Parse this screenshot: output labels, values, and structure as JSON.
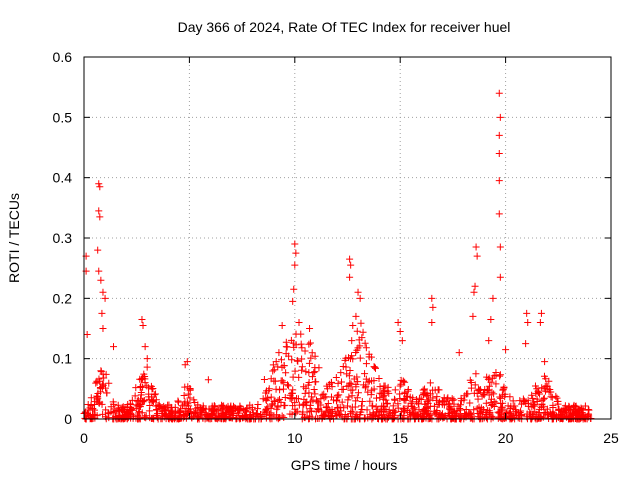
{
  "chart_data": {
    "type": "scatter",
    "title": "Day 366 of 2024, Rate Of TEC Index for receiver huel",
    "xlabel": "GPS time / hours",
    "ylabel": "ROTI / TECUs",
    "xlim": [
      0,
      25
    ],
    "ylim": [
      0,
      0.6
    ],
    "xticks": [
      "0",
      "5",
      "10",
      "15",
      "20",
      "25"
    ],
    "yticks": [
      "0",
      "0.1",
      "0.2",
      "0.3",
      "0.4",
      "0.5",
      "0.6"
    ],
    "grid": true,
    "marker": "+",
    "series": [
      {
        "name": "ROTI",
        "color": "#ff0000",
        "notable_points": [
          {
            "x": 0.1,
            "y": 0.27
          },
          {
            "x": 0.1,
            "y": 0.245
          },
          {
            "x": 0.15,
            "y": 0.14
          },
          {
            "x": 0.7,
            "y": 0.39
          },
          {
            "x": 0.75,
            "y": 0.385
          },
          {
            "x": 0.7,
            "y": 0.345
          },
          {
            "x": 0.75,
            "y": 0.335
          },
          {
            "x": 0.65,
            "y": 0.28
          },
          {
            "x": 0.7,
            "y": 0.245
          },
          {
            "x": 0.8,
            "y": 0.23
          },
          {
            "x": 0.9,
            "y": 0.21
          },
          {
            "x": 1.0,
            "y": 0.2
          },
          {
            "x": 0.85,
            "y": 0.175
          },
          {
            "x": 0.9,
            "y": 0.15
          },
          {
            "x": 1.4,
            "y": 0.12
          },
          {
            "x": 2.75,
            "y": 0.165
          },
          {
            "x": 2.8,
            "y": 0.155
          },
          {
            "x": 2.9,
            "y": 0.12
          },
          {
            "x": 3.0,
            "y": 0.1
          },
          {
            "x": 4.8,
            "y": 0.09
          },
          {
            "x": 4.9,
            "y": 0.095
          },
          {
            "x": 5.9,
            "y": 0.065
          },
          {
            "x": 9.4,
            "y": 0.155
          },
          {
            "x": 9.6,
            "y": 0.12
          },
          {
            "x": 10.0,
            "y": 0.29
          },
          {
            "x": 10.05,
            "y": 0.275
          },
          {
            "x": 10.0,
            "y": 0.255
          },
          {
            "x": 9.95,
            "y": 0.215
          },
          {
            "x": 9.9,
            "y": 0.195
          },
          {
            "x": 10.2,
            "y": 0.16
          },
          {
            "x": 10.7,
            "y": 0.15
          },
          {
            "x": 12.6,
            "y": 0.265
          },
          {
            "x": 12.65,
            "y": 0.255
          },
          {
            "x": 12.6,
            "y": 0.235
          },
          {
            "x": 13.0,
            "y": 0.21
          },
          {
            "x": 13.1,
            "y": 0.2
          },
          {
            "x": 12.9,
            "y": 0.17
          },
          {
            "x": 12.75,
            "y": 0.155
          },
          {
            "x": 12.7,
            "y": 0.13
          },
          {
            "x": 14.9,
            "y": 0.16
          },
          {
            "x": 15.0,
            "y": 0.145
          },
          {
            "x": 15.1,
            "y": 0.13
          },
          {
            "x": 16.5,
            "y": 0.2
          },
          {
            "x": 16.55,
            "y": 0.185
          },
          {
            "x": 16.5,
            "y": 0.16
          },
          {
            "x": 17.8,
            "y": 0.11
          },
          {
            "x": 18.6,
            "y": 0.285
          },
          {
            "x": 18.65,
            "y": 0.27
          },
          {
            "x": 18.55,
            "y": 0.22
          },
          {
            "x": 18.5,
            "y": 0.21
          },
          {
            "x": 18.45,
            "y": 0.17
          },
          {
            "x": 19.7,
            "y": 0.54
          },
          {
            "x": 19.75,
            "y": 0.5
          },
          {
            "x": 19.7,
            "y": 0.47
          },
          {
            "x": 19.7,
            "y": 0.44
          },
          {
            "x": 19.7,
            "y": 0.395
          },
          {
            "x": 19.7,
            "y": 0.34
          },
          {
            "x": 19.75,
            "y": 0.285
          },
          {
            "x": 19.75,
            "y": 0.235
          },
          {
            "x": 19.4,
            "y": 0.2
          },
          {
            "x": 19.3,
            "y": 0.165
          },
          {
            "x": 19.2,
            "y": 0.13
          },
          {
            "x": 20.0,
            "y": 0.115
          },
          {
            "x": 21.0,
            "y": 0.175
          },
          {
            "x": 21.05,
            "y": 0.16
          },
          {
            "x": 20.95,
            "y": 0.125
          },
          {
            "x": 21.7,
            "y": 0.175
          },
          {
            "x": 21.65,
            "y": 0.16
          },
          {
            "x": 21.85,
            "y": 0.095
          }
        ]
      }
    ]
  }
}
